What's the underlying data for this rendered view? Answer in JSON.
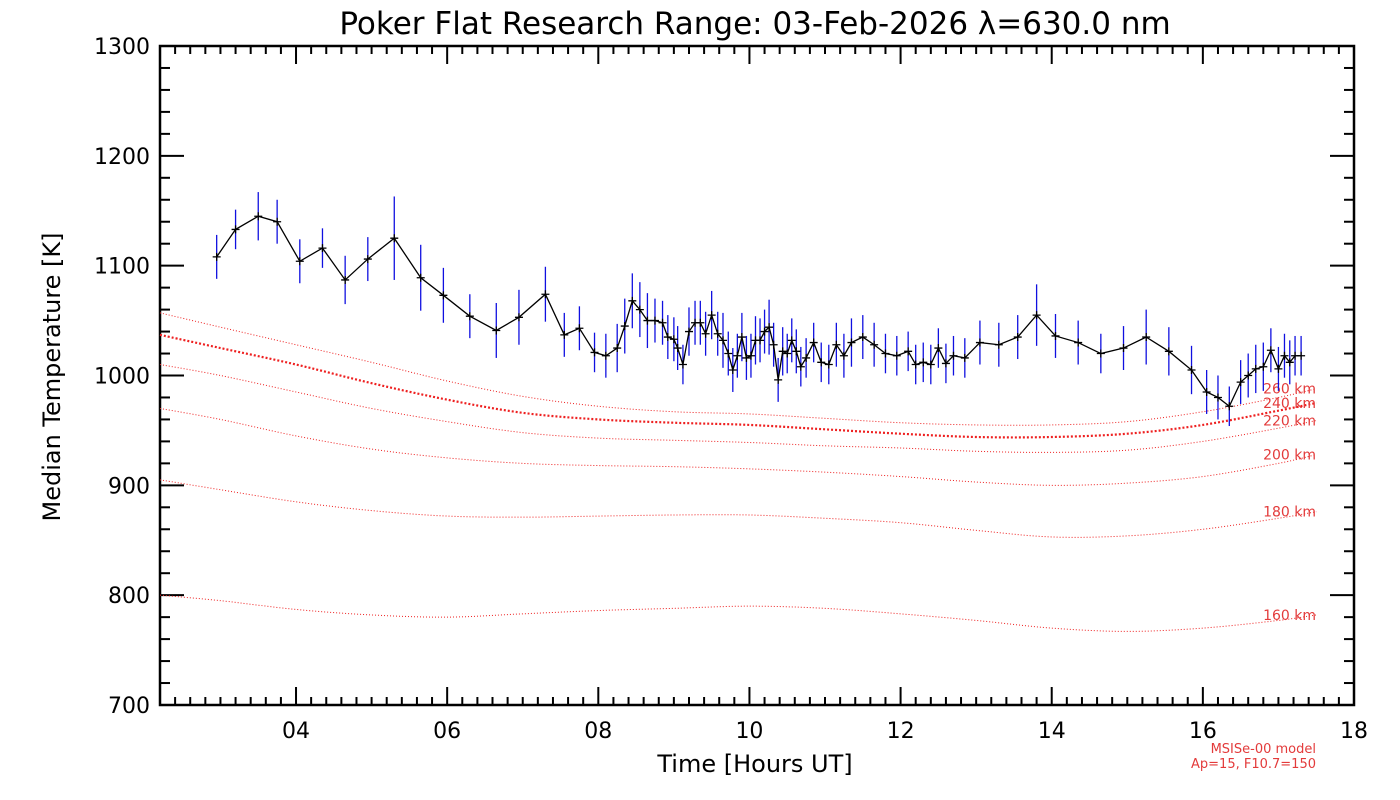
{
  "chart_data": {
    "type": "line",
    "title": "Poker Flat Research Range: 03-Feb-2026 λ=630.0 nm",
    "xlabel": "Time [Hours UT]",
    "ylabel": "Median Temperature [K]",
    "xlim": [
      2.2,
      18.0
    ],
    "ylim": [
      700,
      1300
    ],
    "xticks": [
      4,
      6,
      8,
      10,
      12,
      14,
      16,
      18
    ],
    "xtick_labels": [
      "04",
      "06",
      "08",
      "10",
      "12",
      "14",
      "16",
      "18"
    ],
    "yticks": [
      700,
      800,
      900,
      1000,
      1100,
      1200,
      1300
    ],
    "ytick_labels": [
      "700",
      "800",
      "900",
      "1000",
      "1100",
      "1200",
      "1300"
    ],
    "grid": false,
    "model_note": [
      "MSISe-00 model",
      "Ap=15, F10.7=150"
    ],
    "colors": {
      "data": "#000000",
      "error_bars": "#1010e0",
      "model": "#ee2020"
    },
    "series": [
      {
        "kind": "measurement",
        "x": [
          2.95,
          3.2,
          3.5,
          3.75,
          4.05,
          4.35,
          4.65,
          4.95,
          5.3,
          5.65,
          5.95,
          6.3,
          6.65,
          6.95,
          7.3,
          7.55,
          7.75,
          7.95,
          8.1,
          8.25,
          8.35,
          8.45,
          8.55,
          8.65,
          8.75,
          8.85,
          8.92,
          9.0,
          9.05,
          9.12,
          9.2,
          9.28,
          9.35,
          9.42,
          9.5,
          9.58,
          9.65,
          9.72,
          9.78,
          9.84,
          9.9,
          9.96,
          10.02,
          10.08,
          10.14,
          10.2,
          10.26,
          10.32,
          10.38,
          10.44,
          10.5,
          10.56,
          10.62,
          10.68,
          10.75,
          10.85,
          10.95,
          11.05,
          11.15,
          11.25,
          11.35,
          11.5,
          11.65,
          11.8,
          11.95,
          12.1,
          12.2,
          12.3,
          12.4,
          12.5,
          12.6,
          12.7,
          12.85,
          13.05,
          13.3,
          13.55,
          13.8,
          14.05,
          14.35,
          14.65,
          14.95,
          15.25,
          15.55,
          15.85,
          16.05,
          16.2,
          16.35,
          16.5,
          16.6,
          16.7,
          16.8,
          16.9,
          17.0,
          17.08,
          17.15,
          17.22,
          17.3
        ],
        "y": [
          1108,
          1133,
          1145,
          1140,
          1104,
          1116,
          1087,
          1106,
          1125,
          1089,
          1073,
          1054,
          1041,
          1053,
          1074,
          1037,
          1043,
          1021,
          1018,
          1025,
          1045,
          1068,
          1060,
          1050,
          1050,
          1048,
          1035,
          1033,
          1025,
          1010,
          1040,
          1048,
          1048,
          1038,
          1055,
          1038,
          1032,
          1020,
          1005,
          1018,
          1035,
          1016,
          1018,
          1032,
          1032,
          1040,
          1044,
          1028,
          996,
          1022,
          1020,
          1032,
          1022,
          1008,
          1016,
          1030,
          1012,
          1010,
          1028,
          1018,
          1030,
          1035,
          1028,
          1020,
          1018,
          1022,
          1010,
          1012,
          1010,
          1025,
          1011,
          1018,
          1016,
          1030,
          1028,
          1035,
          1055,
          1036,
          1030,
          1020,
          1025,
          1035,
          1022,
          1005,
          985,
          980,
          972,
          994,
          1000,
          1006,
          1008,
          1023,
          1006,
          1018,
          1012,
          1018,
          1018
        ],
        "err": [
          20,
          18,
          22,
          20,
          20,
          18,
          22,
          20,
          38,
          30,
          25,
          20,
          25,
          25,
          25,
          20,
          20,
          18,
          20,
          22,
          25,
          25,
          25,
          25,
          20,
          20,
          20,
          20,
          20,
          18,
          22,
          20,
          20,
          20,
          22,
          20,
          25,
          20,
          20,
          20,
          22,
          20,
          20,
          22,
          20,
          20,
          25,
          20,
          20,
          22,
          18,
          20,
          20,
          18,
          18,
          18,
          18,
          18,
          20,
          20,
          22,
          20,
          20,
          18,
          18,
          18,
          18,
          18,
          18,
          18,
          18,
          18,
          18,
          20,
          20,
          20,
          28,
          20,
          20,
          18,
          20,
          25,
          22,
          22,
          20,
          20,
          18,
          20,
          20,
          22,
          22,
          20,
          20,
          20,
          20,
          18,
          18
        ]
      },
      {
        "kind": "model",
        "name": "160 km",
        "x": [
          2.2,
          3,
          4,
          5,
          6,
          7,
          8,
          9,
          10,
          11,
          12,
          13,
          14,
          15,
          16,
          17,
          17.5
        ],
        "y": [
          800,
          795,
          787,
          782,
          780,
          783,
          786,
          788,
          790,
          788,
          783,
          777,
          770,
          767,
          770,
          777,
          782
        ]
      },
      {
        "kind": "model",
        "name": "180 km",
        "x": [
          2.2,
          3,
          4,
          5,
          6,
          7,
          8,
          9,
          10,
          11,
          12,
          13,
          14,
          15,
          16,
          17,
          17.5
        ],
        "y": [
          905,
          896,
          885,
          877,
          872,
          871,
          872,
          873,
          873,
          870,
          866,
          859,
          853,
          854,
          860,
          870,
          876
        ]
      },
      {
        "kind": "model",
        "name": "200 km",
        "x": [
          2.2,
          3,
          4,
          5,
          6,
          7,
          8,
          9,
          10,
          11,
          12,
          13,
          14,
          15,
          16,
          17,
          17.5
        ],
        "y": [
          970,
          960,
          945,
          933,
          925,
          920,
          918,
          917,
          915,
          912,
          908,
          903,
          900,
          902,
          908,
          920,
          928
        ]
      },
      {
        "kind": "model",
        "name": "220 km",
        "x": [
          2.2,
          3,
          4,
          5,
          6,
          7,
          8,
          9,
          10,
          11,
          12,
          13,
          14,
          15,
          16,
          17,
          17.5
        ],
        "y": [
          1010,
          1000,
          985,
          970,
          958,
          948,
          943,
          941,
          939,
          936,
          934,
          931,
          930,
          932,
          940,
          952,
          959
        ]
      },
      {
        "kind": "model",
        "name": "240 km",
        "x": [
          2.2,
          3,
          4,
          5,
          6,
          7,
          8,
          9,
          10,
          11,
          12,
          13,
          14,
          15,
          16,
          17,
          17.5
        ],
        "y": [
          1037,
          1025,
          1010,
          993,
          978,
          966,
          960,
          957,
          955,
          951,
          947,
          944,
          944,
          947,
          955,
          968,
          975
        ]
      },
      {
        "kind": "model",
        "name": "260 km",
        "x": [
          2.2,
          3,
          4,
          5,
          6,
          7,
          8,
          9,
          10,
          11,
          12,
          13,
          14,
          15,
          16,
          17,
          17.5
        ],
        "y": [
          1057,
          1044,
          1028,
          1012,
          995,
          981,
          972,
          967,
          965,
          961,
          957,
          955,
          955,
          958,
          967,
          980,
          988
        ]
      }
    ]
  }
}
